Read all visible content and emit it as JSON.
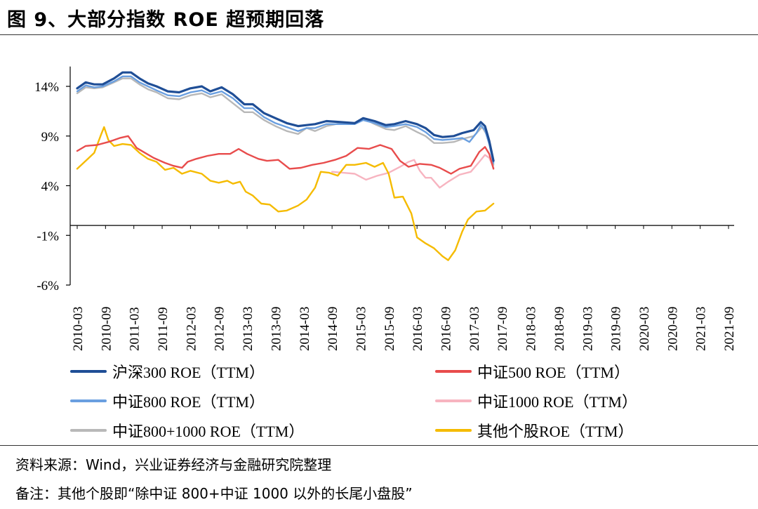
{
  "title": "图 9、大部分指数 ROE 超预期回落",
  "source": "资料来源：Wind，兴业证券经济与金融研究院整理",
  "remark": "备注：其他个股即“除中证 800+中证 1000 以外的长尾小盘股”",
  "chart_data": {
    "type": "line",
    "title": "图 9、大部分指数 ROE 超预期回落",
    "xlabel": "",
    "ylabel": "",
    "ylim": [
      -6,
      16
    ],
    "yticks": [
      14,
      9,
      4,
      -1,
      -6
    ],
    "ytick_labels": [
      "14%",
      "9%",
      "4%",
      "-1%",
      "-6%"
    ],
    "grid": false,
    "legend_position": "bottom",
    "x_labels": [
      "2010-03",
      "2010-09",
      "2011-03",
      "2011-09",
      "2012-03",
      "2012-09",
      "2013-03",
      "2013-09",
      "2014-03",
      "2014-09",
      "2015-03",
      "2015-09",
      "2016-03",
      "2016-09",
      "2017-03",
      "2017-09",
      "2018-03",
      "2018-09",
      "2019-03",
      "2019-09",
      "2020-03",
      "2020-09",
      "2021-03",
      "2021-09"
    ],
    "series": [
      {
        "name": "沪深300 ROE（TTM）",
        "color": "#1f4e96",
        "width": 3.2,
        "points": [
          [
            0,
            13.8
          ],
          [
            0.3,
            14.4
          ],
          [
            0.6,
            14.2
          ],
          [
            0.9,
            14.2
          ],
          [
            1.3,
            14.8
          ],
          [
            1.6,
            15.4
          ],
          [
            1.9,
            15.4
          ],
          [
            2.2,
            14.8
          ],
          [
            2.5,
            14.3
          ],
          [
            2.8,
            14.0
          ],
          [
            3.2,
            13.5
          ],
          [
            3.6,
            13.4
          ],
          [
            4.0,
            13.8
          ],
          [
            4.4,
            14.0
          ],
          [
            4.7,
            13.5
          ],
          [
            5.1,
            13.9
          ],
          [
            5.5,
            13.2
          ],
          [
            5.9,
            12.2
          ],
          [
            6.2,
            12.2
          ],
          [
            6.6,
            11.3
          ],
          [
            7.0,
            10.8
          ],
          [
            7.4,
            10.3
          ],
          [
            7.8,
            10.0
          ],
          [
            8.1,
            10.1
          ],
          [
            8.4,
            10.2
          ],
          [
            8.8,
            10.5
          ],
          [
            9.3,
            10.4
          ],
          [
            9.8,
            10.3
          ],
          [
            10.1,
            10.8
          ],
          [
            10.5,
            10.5
          ],
          [
            10.9,
            10.1
          ],
          [
            11.2,
            10.2
          ],
          [
            11.6,
            10.5
          ],
          [
            12.0,
            10.2
          ],
          [
            12.3,
            9.8
          ],
          [
            12.6,
            9.1
          ],
          [
            12.9,
            8.9
          ],
          [
            13.3,
            9.0
          ],
          [
            13.6,
            9.3
          ],
          [
            14.0,
            9.6
          ],
          [
            14.25,
            10.4
          ],
          [
            14.4,
            10.0
          ],
          [
            14.55,
            8.5
          ],
          [
            14.7,
            6.5
          ]
        ]
      },
      {
        "name": "中证500 ROE（TTM）",
        "color": "#e84c4c",
        "width": 2.4,
        "points": [
          [
            0,
            7.5
          ],
          [
            0.3,
            8.0
          ],
          [
            0.7,
            8.1
          ],
          [
            1.1,
            8.4
          ],
          [
            1.5,
            8.8
          ],
          [
            1.8,
            9.0
          ],
          [
            2.1,
            7.8
          ],
          [
            2.4,
            7.3
          ],
          [
            2.7,
            6.8
          ],
          [
            3.1,
            6.3
          ],
          [
            3.4,
            6.0
          ],
          [
            3.7,
            5.8
          ],
          [
            3.9,
            6.4
          ],
          [
            4.2,
            6.7
          ],
          [
            4.6,
            7.0
          ],
          [
            5.0,
            7.2
          ],
          [
            5.4,
            7.2
          ],
          [
            5.7,
            7.7
          ],
          [
            6.0,
            7.2
          ],
          [
            6.4,
            6.7
          ],
          [
            6.7,
            6.5
          ],
          [
            7.1,
            6.6
          ],
          [
            7.5,
            5.7
          ],
          [
            7.9,
            5.8
          ],
          [
            8.3,
            6.1
          ],
          [
            8.7,
            6.3
          ],
          [
            9.1,
            6.6
          ],
          [
            9.5,
            7.0
          ],
          [
            9.9,
            7.8
          ],
          [
            10.3,
            7.7
          ],
          [
            10.7,
            8.1
          ],
          [
            11.1,
            7.7
          ],
          [
            11.4,
            6.5
          ],
          [
            11.7,
            5.9
          ],
          [
            12.1,
            6.2
          ],
          [
            12.5,
            6.1
          ],
          [
            12.8,
            5.8
          ],
          [
            13.2,
            5.2
          ],
          [
            13.5,
            5.7
          ],
          [
            13.9,
            6.0
          ],
          [
            14.2,
            7.4
          ],
          [
            14.4,
            7.9
          ],
          [
            14.55,
            7.2
          ],
          [
            14.7,
            5.7
          ]
        ]
      },
      {
        "name": "中证800 ROE（TTM）",
        "color": "#6a9fe0",
        "width": 2.4,
        "points": [
          [
            0,
            13.5
          ],
          [
            0.3,
            14.1
          ],
          [
            0.6,
            13.9
          ],
          [
            0.9,
            14.0
          ],
          [
            1.3,
            14.5
          ],
          [
            1.6,
            15.0
          ],
          [
            1.9,
            15.0
          ],
          [
            2.2,
            14.4
          ],
          [
            2.5,
            14.0
          ],
          [
            2.8,
            13.6
          ],
          [
            3.2,
            13.1
          ],
          [
            3.6,
            13.0
          ],
          [
            4.0,
            13.4
          ],
          [
            4.4,
            13.6
          ],
          [
            4.7,
            13.2
          ],
          [
            5.1,
            13.5
          ],
          [
            5.5,
            12.8
          ],
          [
            5.9,
            11.8
          ],
          [
            6.2,
            11.8
          ],
          [
            6.6,
            10.9
          ],
          [
            7.0,
            10.3
          ],
          [
            7.4,
            9.9
          ],
          [
            7.8,
            9.5
          ],
          [
            8.1,
            9.8
          ],
          [
            8.4,
            9.8
          ],
          [
            8.8,
            10.2
          ],
          [
            9.3,
            10.2
          ],
          [
            9.8,
            10.2
          ],
          [
            10.1,
            10.6
          ],
          [
            10.5,
            10.3
          ],
          [
            10.9,
            9.9
          ],
          [
            11.2,
            10.0
          ],
          [
            11.6,
            10.2
          ],
          [
            12.0,
            9.9
          ],
          [
            12.3,
            9.4
          ],
          [
            12.6,
            8.7
          ],
          [
            12.9,
            8.6
          ],
          [
            13.3,
            8.7
          ],
          [
            13.6,
            8.8
          ],
          [
            13.85,
            8.4
          ],
          [
            14.1,
            9.3
          ],
          [
            14.25,
            10.1
          ],
          [
            14.4,
            9.6
          ],
          [
            14.55,
            8.2
          ],
          [
            14.7,
            6.3
          ]
        ]
      },
      {
        "name": "中证1000 ROE（TTM）",
        "color": "#f7b4c0",
        "width": 2.4,
        "points": [
          [
            9.0,
            5.4
          ],
          [
            9.4,
            5.3
          ],
          [
            9.8,
            5.2
          ],
          [
            10.2,
            4.6
          ],
          [
            10.6,
            5.0
          ],
          [
            11.0,
            5.3
          ],
          [
            11.4,
            5.9
          ],
          [
            11.7,
            6.4
          ],
          [
            11.9,
            6.6
          ],
          [
            12.1,
            5.5
          ],
          [
            12.3,
            4.8
          ],
          [
            12.5,
            4.8
          ],
          [
            12.8,
            3.8
          ],
          [
            13.1,
            4.4
          ],
          [
            13.5,
            5.1
          ],
          [
            13.9,
            5.4
          ],
          [
            14.2,
            6.4
          ],
          [
            14.4,
            7.1
          ],
          [
            14.55,
            6.8
          ],
          [
            14.7,
            5.8
          ]
        ]
      },
      {
        "name": "中证800+1000 ROE（TTM）",
        "color": "#b8b8b8",
        "width": 2.4,
        "points": [
          [
            0,
            13.3
          ],
          [
            0.3,
            13.9
          ],
          [
            0.6,
            13.8
          ],
          [
            0.9,
            13.9
          ],
          [
            1.3,
            14.4
          ],
          [
            1.6,
            14.8
          ],
          [
            1.9,
            14.8
          ],
          [
            2.2,
            14.2
          ],
          [
            2.5,
            13.7
          ],
          [
            2.8,
            13.4
          ],
          [
            3.2,
            12.8
          ],
          [
            3.6,
            12.7
          ],
          [
            4.0,
            13.1
          ],
          [
            4.4,
            13.3
          ],
          [
            4.7,
            12.9
          ],
          [
            5.1,
            13.2
          ],
          [
            5.5,
            12.3
          ],
          [
            5.9,
            11.4
          ],
          [
            6.2,
            11.4
          ],
          [
            6.6,
            10.6
          ],
          [
            7.0,
            10.0
          ],
          [
            7.4,
            9.5
          ],
          [
            7.8,
            9.2
          ],
          [
            8.1,
            9.8
          ],
          [
            8.4,
            9.5
          ],
          [
            8.8,
            10.0
          ],
          [
            9.3,
            10.3
          ],
          [
            9.8,
            10.3
          ],
          [
            10.1,
            10.8
          ],
          [
            10.5,
            10.2
          ],
          [
            10.9,
            9.7
          ],
          [
            11.2,
            9.6
          ],
          [
            11.6,
            10.0
          ],
          [
            12.0,
            9.4
          ],
          [
            12.3,
            9.0
          ],
          [
            12.6,
            8.3
          ],
          [
            12.9,
            8.3
          ],
          [
            13.3,
            8.4
          ],
          [
            13.6,
            8.7
          ],
          [
            14.0,
            9.0
          ],
          [
            14.2,
            9.6
          ],
          [
            14.3,
            9.9
          ],
          [
            14.45,
            9.2
          ],
          [
            14.6,
            7.8
          ],
          [
            14.7,
            6.1
          ]
        ]
      },
      {
        "name": "其他个股ROE（TTM）",
        "color": "#f5bb00",
        "width": 2.4,
        "points": [
          [
            0,
            5.7
          ],
          [
            0.3,
            6.5
          ],
          [
            0.6,
            7.3
          ],
          [
            0.85,
            9.2
          ],
          [
            0.95,
            9.9
          ],
          [
            1.1,
            8.6
          ],
          [
            1.3,
            8.0
          ],
          [
            1.6,
            8.2
          ],
          [
            1.9,
            8.1
          ],
          [
            2.2,
            7.3
          ],
          [
            2.5,
            6.7
          ],
          [
            2.8,
            6.4
          ],
          [
            3.1,
            5.6
          ],
          [
            3.4,
            5.8
          ],
          [
            3.7,
            5.2
          ],
          [
            4.0,
            5.5
          ],
          [
            4.4,
            5.2
          ],
          [
            4.7,
            4.5
          ],
          [
            5.0,
            4.3
          ],
          [
            5.3,
            4.5
          ],
          [
            5.5,
            4.2
          ],
          [
            5.75,
            4.4
          ],
          [
            5.95,
            3.4
          ],
          [
            6.2,
            3.0
          ],
          [
            6.5,
            2.2
          ],
          [
            6.8,
            2.1
          ],
          [
            7.1,
            1.4
          ],
          [
            7.4,
            1.5
          ],
          [
            7.8,
            2.0
          ],
          [
            8.1,
            2.6
          ],
          [
            8.4,
            3.8
          ],
          [
            8.6,
            5.4
          ],
          [
            8.9,
            5.3
          ],
          [
            9.2,
            5.0
          ],
          [
            9.5,
            6.1
          ],
          [
            9.8,
            6.1
          ],
          [
            10.2,
            6.3
          ],
          [
            10.5,
            5.9
          ],
          [
            10.8,
            6.3
          ],
          [
            11.0,
            5.2
          ],
          [
            11.2,
            2.8
          ],
          [
            11.5,
            2.9
          ],
          [
            11.8,
            1.2
          ],
          [
            12.0,
            -1.2
          ],
          [
            12.3,
            -1.8
          ],
          [
            12.6,
            -2.3
          ],
          [
            12.9,
            -3.1
          ],
          [
            13.1,
            -3.5
          ],
          [
            13.35,
            -2.5
          ],
          [
            13.6,
            -0.6
          ],
          [
            13.8,
            0.6
          ],
          [
            14.1,
            1.4
          ],
          [
            14.4,
            1.5
          ],
          [
            14.7,
            2.2
          ]
        ]
      }
    ]
  }
}
